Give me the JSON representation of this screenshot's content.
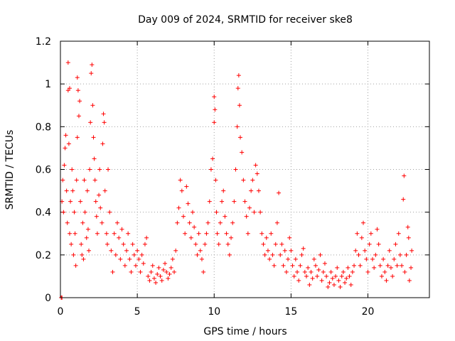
{
  "chart_data": {
    "type": "scatter",
    "title": "Day 009 of 2024, SRMTID for receiver ske8",
    "xlabel": "GPS time / hours",
    "ylabel": "SRMTID / TECUs",
    "xlim": [
      0,
      24
    ],
    "ylim": [
      0,
      1.2
    ],
    "xticks": [
      0,
      5,
      10,
      15,
      20
    ],
    "xtick_labels": [
      "0",
      "5",
      "10",
      "15",
      "20"
    ],
    "yticks": [
      0,
      0.2,
      0.4,
      0.6,
      0.8,
      1.0,
      1.2
    ],
    "ytick_labels": [
      "0",
      "0.2",
      "0.4",
      "0.6",
      "0.8",
      "1",
      "1.2"
    ],
    "grid": true,
    "marker": "+",
    "color": "#ff0000",
    "series": [
      {
        "name": "SRMTID",
        "points": [
          [
            0.05,
            0.0
          ],
          [
            0.1,
            0.0
          ],
          [
            0.1,
            0.45
          ],
          [
            0.15,
            0.55
          ],
          [
            0.2,
            0.4
          ],
          [
            0.25,
            0.62
          ],
          [
            0.3,
            0.7
          ],
          [
            0.35,
            0.76
          ],
          [
            0.4,
            0.5
          ],
          [
            0.45,
            0.35
          ],
          [
            0.5,
            0.97
          ],
          [
            0.5,
            1.1
          ],
          [
            0.55,
            0.72
          ],
          [
            0.6,
            0.98
          ],
          [
            0.6,
            0.3
          ],
          [
            0.65,
            0.45
          ],
          [
            0.7,
            0.25
          ],
          [
            0.75,
            0.6
          ],
          [
            0.8,
            0.5
          ],
          [
            0.85,
            0.2
          ],
          [
            0.9,
            0.4
          ],
          [
            0.95,
            0.3
          ],
          [
            1.0,
            0.15
          ],
          [
            1.05,
            0.55
          ],
          [
            1.1,
            0.75
          ],
          [
            1.1,
            1.03
          ],
          [
            1.15,
            0.97
          ],
          [
            1.2,
            0.85
          ],
          [
            1.25,
            0.92
          ],
          [
            1.3,
            0.45
          ],
          [
            1.35,
            0.25
          ],
          [
            1.4,
            0.2
          ],
          [
            1.45,
            0.35
          ],
          [
            1.5,
            0.18
          ],
          [
            1.55,
            0.55
          ],
          [
            1.6,
            0.4
          ],
          [
            1.7,
            0.28
          ],
          [
            1.75,
            0.5
          ],
          [
            1.8,
            0.32
          ],
          [
            1.85,
            0.22
          ],
          [
            1.9,
            0.6
          ],
          [
            1.95,
            0.82
          ],
          [
            2.0,
            1.05
          ],
          [
            2.05,
            1.09
          ],
          [
            2.1,
            0.9
          ],
          [
            2.15,
            0.75
          ],
          [
            2.2,
            0.65
          ],
          [
            2.25,
            0.55
          ],
          [
            2.3,
            0.45
          ],
          [
            2.35,
            0.38
          ],
          [
            2.4,
            0.3
          ],
          [
            2.5,
            0.48
          ],
          [
            2.55,
            0.6
          ],
          [
            2.6,
            0.42
          ],
          [
            2.7,
            0.35
          ],
          [
            2.75,
            0.72
          ],
          [
            2.8,
            0.86
          ],
          [
            2.85,
            0.82
          ],
          [
            2.9,
            0.5
          ],
          [
            3.0,
            0.3
          ],
          [
            3.05,
            0.25
          ],
          [
            3.1,
            0.6
          ],
          [
            3.2,
            0.4
          ],
          [
            3.3,
            0.22
          ],
          [
            3.4,
            0.12
          ],
          [
            3.5,
            0.3
          ],
          [
            3.6,
            0.2
          ],
          [
            3.7,
            0.35
          ],
          [
            3.8,
            0.28
          ],
          [
            3.9,
            0.18
          ],
          [
            4.0,
            0.32
          ],
          [
            4.1,
            0.25
          ],
          [
            4.2,
            0.15
          ],
          [
            4.3,
            0.22
          ],
          [
            4.4,
            0.3
          ],
          [
            4.5,
            0.18
          ],
          [
            4.6,
            0.12
          ],
          [
            4.7,
            0.25
          ],
          [
            4.8,
            0.2
          ],
          [
            4.9,
            0.15
          ],
          [
            5.0,
            0.22
          ],
          [
            5.1,
            0.18
          ],
          [
            5.2,
            0.12
          ],
          [
            5.3,
            0.2
          ],
          [
            5.4,
            0.16
          ],
          [
            5.5,
            0.25
          ],
          [
            5.6,
            0.28
          ],
          [
            5.7,
            0.1
          ],
          [
            5.8,
            0.08
          ],
          [
            5.9,
            0.12
          ],
          [
            6.0,
            0.15
          ],
          [
            6.1,
            0.09
          ],
          [
            6.2,
            0.07
          ],
          [
            6.3,
            0.11
          ],
          [
            6.4,
            0.14
          ],
          [
            6.5,
            0.1
          ],
          [
            6.6,
            0.08
          ],
          [
            6.7,
            0.13
          ],
          [
            6.8,
            0.16
          ],
          [
            6.9,
            0.12
          ],
          [
            7.0,
            0.09
          ],
          [
            7.1,
            0.11
          ],
          [
            7.2,
            0.14
          ],
          [
            7.3,
            0.18
          ],
          [
            7.4,
            0.12
          ],
          [
            7.5,
            0.22
          ],
          [
            7.6,
            0.35
          ],
          [
            7.7,
            0.42
          ],
          [
            7.8,
            0.55
          ],
          [
            7.9,
            0.5
          ],
          [
            8.0,
            0.38
          ],
          [
            8.1,
            0.3
          ],
          [
            8.2,
            0.52
          ],
          [
            8.3,
            0.44
          ],
          [
            8.4,
            0.35
          ],
          [
            8.5,
            0.28
          ],
          [
            8.6,
            0.4
          ],
          [
            8.7,
            0.33
          ],
          [
            8.8,
            0.25
          ],
          [
            8.9,
            0.2
          ],
          [
            9.0,
            0.3
          ],
          [
            9.1,
            0.22
          ],
          [
            9.2,
            0.18
          ],
          [
            9.3,
            0.12
          ],
          [
            9.4,
            0.25
          ],
          [
            9.5,
            0.3
          ],
          [
            9.6,
            0.35
          ],
          [
            9.7,
            0.45
          ],
          [
            9.8,
            0.6
          ],
          [
            9.9,
            0.65
          ],
          [
            10.0,
            0.82
          ],
          [
            10.0,
            0.94
          ],
          [
            10.05,
            0.88
          ],
          [
            10.1,
            0.55
          ],
          [
            10.15,
            0.4
          ],
          [
            10.2,
            0.3
          ],
          [
            10.3,
            0.25
          ],
          [
            10.4,
            0.35
          ],
          [
            10.5,
            0.45
          ],
          [
            10.6,
            0.5
          ],
          [
            10.7,
            0.38
          ],
          [
            10.8,
            0.3
          ],
          [
            10.9,
            0.25
          ],
          [
            11.0,
            0.2
          ],
          [
            11.1,
            0.28
          ],
          [
            11.2,
            0.35
          ],
          [
            11.3,
            0.45
          ],
          [
            11.4,
            0.6
          ],
          [
            11.5,
            0.8
          ],
          [
            11.55,
            0.98
          ],
          [
            11.6,
            1.04
          ],
          [
            11.65,
            0.9
          ],
          [
            11.7,
            0.75
          ],
          [
            11.8,
            0.68
          ],
          [
            11.9,
            0.55
          ],
          [
            12.0,
            0.45
          ],
          [
            12.1,
            0.38
          ],
          [
            12.2,
            0.3
          ],
          [
            12.3,
            0.42
          ],
          [
            12.4,
            0.5
          ],
          [
            12.5,
            0.55
          ],
          [
            12.6,
            0.4
          ],
          [
            12.7,
            0.62
          ],
          [
            12.8,
            0.58
          ],
          [
            12.9,
            0.5
          ],
          [
            13.0,
            0.4
          ],
          [
            13.1,
            0.3
          ],
          [
            13.2,
            0.25
          ],
          [
            13.3,
            0.2
          ],
          [
            13.4,
            0.28
          ],
          [
            13.5,
            0.22
          ],
          [
            13.6,
            0.18
          ],
          [
            13.7,
            0.3
          ],
          [
            13.8,
            0.2
          ],
          [
            13.9,
            0.15
          ],
          [
            14.0,
            0.25
          ],
          [
            14.1,
            0.35
          ],
          [
            14.2,
            0.49
          ],
          [
            14.3,
            0.2
          ],
          [
            14.4,
            0.25
          ],
          [
            14.5,
            0.15
          ],
          [
            14.6,
            0.22
          ],
          [
            14.7,
            0.12
          ],
          [
            14.8,
            0.18
          ],
          [
            14.9,
            0.28
          ],
          [
            15.0,
            0.22
          ],
          [
            15.1,
            0.15
          ],
          [
            15.2,
            0.1
          ],
          [
            15.3,
            0.18
          ],
          [
            15.4,
            0.12
          ],
          [
            15.5,
            0.08
          ],
          [
            15.6,
            0.15
          ],
          [
            15.7,
            0.2
          ],
          [
            15.8,
            0.23
          ],
          [
            15.9,
            0.12
          ],
          [
            16.0,
            0.1
          ],
          [
            16.1,
            0.14
          ],
          [
            16.2,
            0.06
          ],
          [
            16.3,
            0.12
          ],
          [
            16.4,
            0.09
          ],
          [
            16.5,
            0.18
          ],
          [
            16.6,
            0.15
          ],
          [
            16.7,
            0.1
          ],
          [
            16.8,
            0.13
          ],
          [
            16.9,
            0.2
          ],
          [
            17.0,
            0.08
          ],
          [
            17.1,
            0.12
          ],
          [
            17.2,
            0.16
          ],
          [
            17.3,
            0.1
          ],
          [
            17.4,
            0.05
          ],
          [
            17.5,
            0.07
          ],
          [
            17.6,
            0.12
          ],
          [
            17.7,
            0.09
          ],
          [
            17.8,
            0.06
          ],
          [
            17.9,
            0.1
          ],
          [
            18.0,
            0.14
          ],
          [
            18.1,
            0.08
          ],
          [
            18.2,
            0.05
          ],
          [
            18.3,
            0.1
          ],
          [
            18.4,
            0.12
          ],
          [
            18.5,
            0.07
          ],
          [
            18.6,
            0.09
          ],
          [
            18.7,
            0.14
          ],
          [
            18.8,
            0.1
          ],
          [
            18.9,
            0.06
          ],
          [
            19.0,
            0.12
          ],
          [
            19.1,
            0.15
          ],
          [
            19.2,
            0.22
          ],
          [
            19.3,
            0.3
          ],
          [
            19.4,
            0.2
          ],
          [
            19.5,
            0.15
          ],
          [
            19.6,
            0.28
          ],
          [
            19.7,
            0.35
          ],
          [
            19.8,
            0.22
          ],
          [
            19.9,
            0.18
          ],
          [
            20.0,
            0.12
          ],
          [
            20.1,
            0.25
          ],
          [
            20.2,
            0.3
          ],
          [
            20.3,
            0.18
          ],
          [
            20.4,
            0.14
          ],
          [
            20.5,
            0.2
          ],
          [
            20.6,
            0.32
          ],
          [
            20.7,
            0.25
          ],
          [
            20.8,
            0.15
          ],
          [
            20.9,
            0.1
          ],
          [
            21.0,
            0.18
          ],
          [
            21.1,
            0.12
          ],
          [
            21.2,
            0.08
          ],
          [
            21.3,
            0.15
          ],
          [
            21.4,
            0.22
          ],
          [
            21.5,
            0.14
          ],
          [
            21.6,
            0.1
          ],
          [
            21.7,
            0.18
          ],
          [
            21.8,
            0.25
          ],
          [
            21.9,
            0.15
          ],
          [
            22.0,
            0.3
          ],
          [
            22.1,
            0.2
          ],
          [
            22.2,
            0.15
          ],
          [
            22.3,
            0.46
          ],
          [
            22.35,
            0.57
          ],
          [
            22.4,
            0.12
          ],
          [
            22.5,
            0.2
          ],
          [
            22.6,
            0.33
          ],
          [
            22.65,
            0.28
          ],
          [
            22.7,
            0.08
          ],
          [
            22.8,
            0.14
          ],
          [
            22.85,
            0.22
          ]
        ]
      }
    ]
  }
}
